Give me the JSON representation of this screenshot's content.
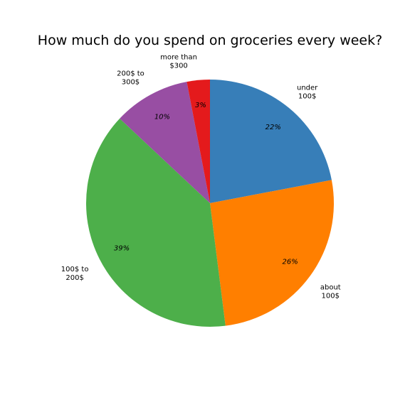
{
  "chart_data": {
    "type": "pie",
    "title": "How much do you spend on groceries every week?",
    "start_angle_deg": 90,
    "direction": "clockwise",
    "slices": [
      {
        "label_lines": [
          "under",
          "100$"
        ],
        "value": 22,
        "pct_label": "22%",
        "color": "#377eb8"
      },
      {
        "label_lines": [
          "about",
          "100$"
        ],
        "value": 26,
        "pct_label": "26%",
        "color": "#ff7f00"
      },
      {
        "label_lines": [
          "100$ to",
          "200$"
        ],
        "value": 39,
        "pct_label": "39%",
        "color": "#4daf4a"
      },
      {
        "label_lines": [
          "200$ to",
          "300$"
        ],
        "value": 10,
        "pct_label": "10%",
        "color": "#984ea3"
      },
      {
        "label_lines": [
          "more than",
          "$300"
        ],
        "value": 3,
        "pct_label": "3%",
        "color": "#e41a1c"
      }
    ]
  }
}
